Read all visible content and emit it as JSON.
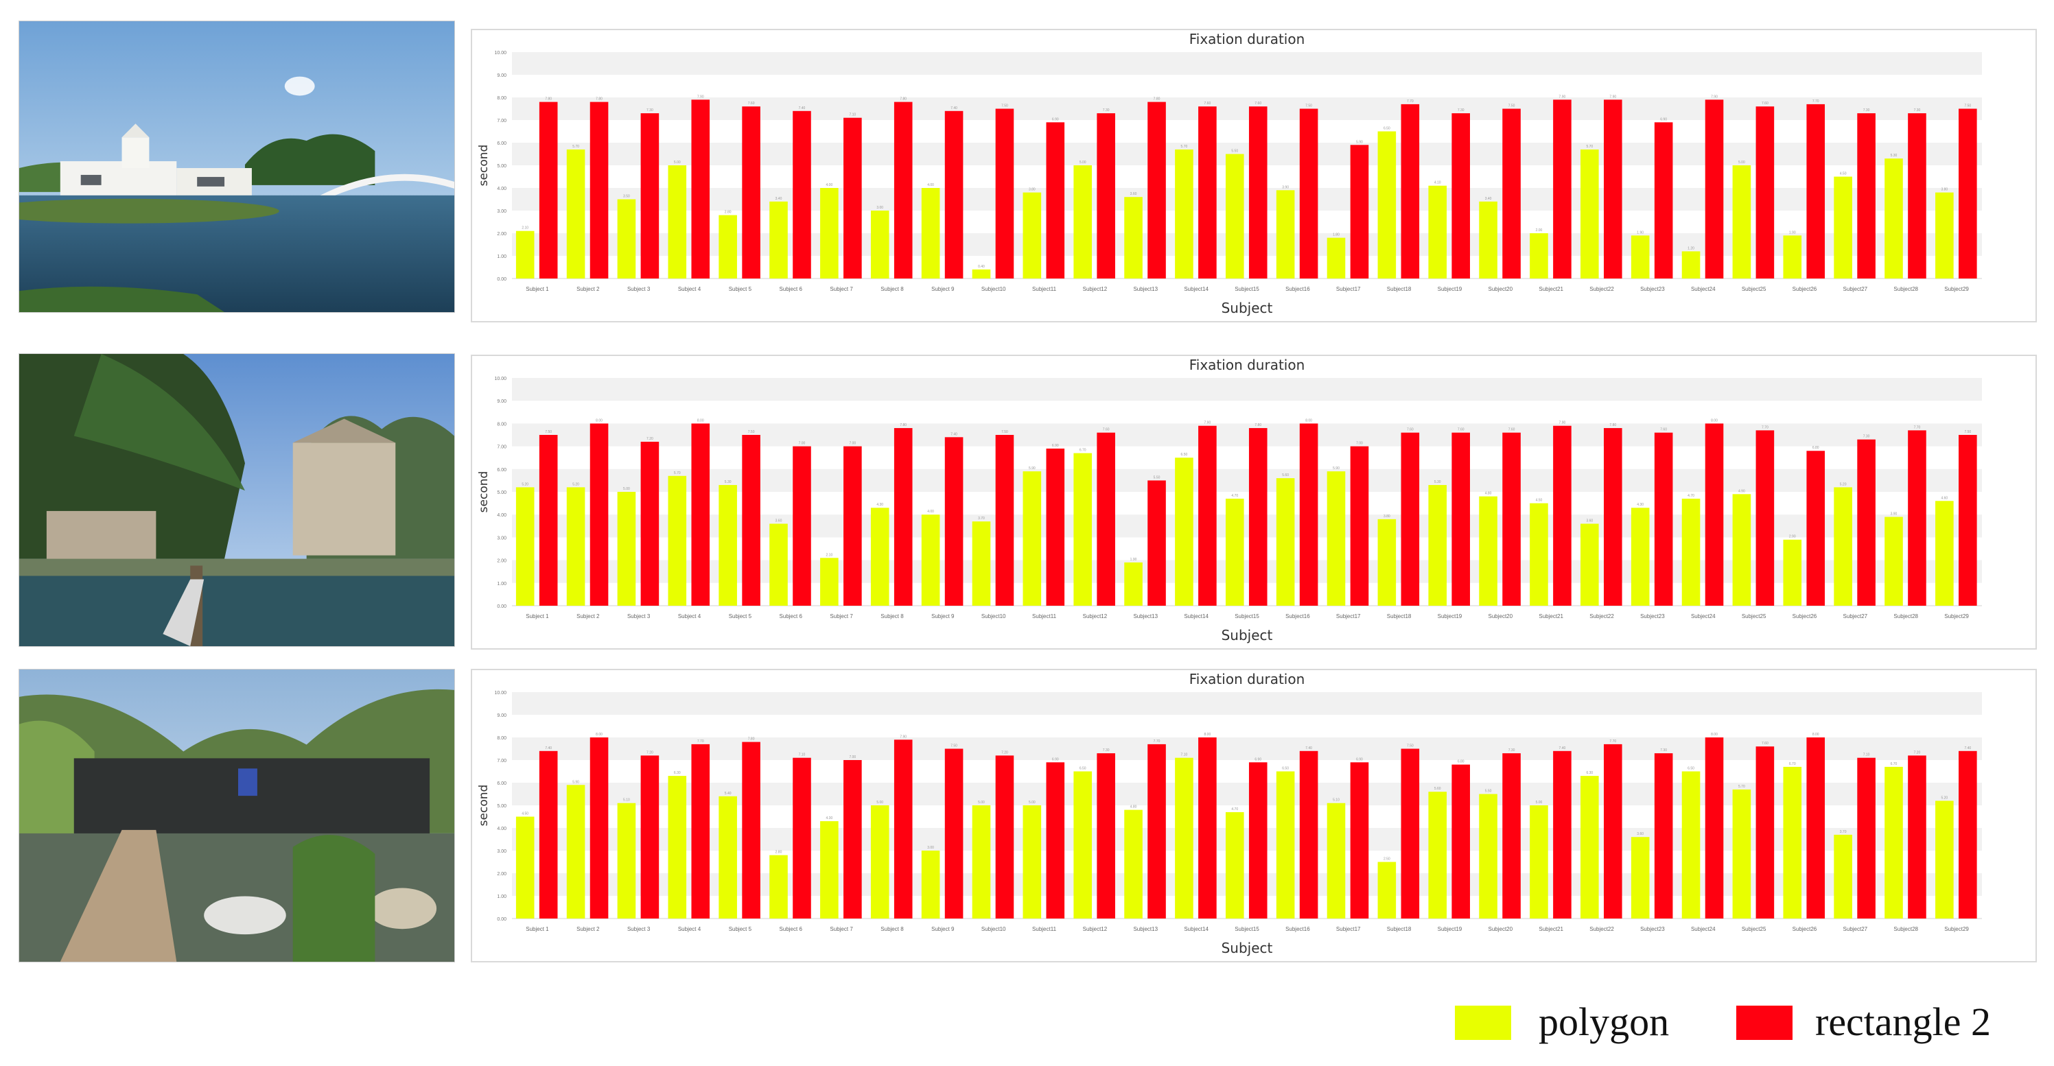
{
  "legend": {
    "polygon_label": "polygon",
    "rectangle_label": "rectangle 2",
    "polygon_color": "#e8ff00",
    "rectangle_color": "#ff0010"
  },
  "photos": [
    {
      "scene": "white-buildings-lake-bridge"
    },
    {
      "scene": "tree-concrete-buildings-pond"
    },
    {
      "scene": "dark-building-mountains-boardwalk"
    }
  ],
  "chart_data": [
    {
      "type": "bar",
      "title": "Fixation duration",
      "xlabel": "Subject",
      "ylabel": "second",
      "ylim": [
        0,
        10
      ],
      "yticks": [
        "0.00",
        "1.00",
        "2.00",
        "3.00",
        "4.00",
        "5.00",
        "6.00",
        "7.00",
        "8.00",
        "9.00",
        "10.00"
      ],
      "categories": [
        "Subject 1",
        "Subject 2",
        "Subject 3",
        "Subject 4",
        "Subject 5",
        "Subject 6",
        "Subject 7",
        "Subject 8",
        "Subject 9",
        "Subject10",
        "Subject11",
        "Subject12",
        "Subject13",
        "Subject14",
        "Subject15",
        "Subject16",
        "Subject17",
        "Subject18",
        "Subject19",
        "Subject20",
        "Subject21",
        "Subject22",
        "Subject23",
        "Subject24",
        "Subject25",
        "Subject26",
        "Subject27",
        "Subject28",
        "Subject29"
      ],
      "series": [
        {
          "name": "polygon",
          "values": [
            2.1,
            5.7,
            3.5,
            5.0,
            2.8,
            3.4,
            4.0,
            3.0,
            4.0,
            0.4,
            3.8,
            5.0,
            3.6,
            5.7,
            5.5,
            3.9,
            1.8,
            6.5,
            4.1,
            3.4,
            2.0,
            5.7,
            1.9,
            1.2,
            5.0,
            1.9,
            4.5,
            5.3,
            3.8
          ]
        },
        {
          "name": "rectangle 2",
          "values": [
            7.8,
            7.8,
            7.3,
            7.9,
            7.6,
            7.4,
            7.1,
            7.8,
            7.4,
            7.5,
            6.9,
            7.3,
            7.8,
            7.6,
            7.6,
            7.5,
            5.9,
            7.7,
            7.3,
            7.5,
            7.9,
            7.9,
            6.9,
            7.9,
            7.6,
            7.7,
            7.3,
            7.3,
            7.5
          ]
        }
      ]
    },
    {
      "type": "bar",
      "title": "Fixation duration",
      "xlabel": "Subject",
      "ylabel": "second",
      "ylim": [
        0,
        10
      ],
      "yticks": [
        "0.00",
        "1.00",
        "2.00",
        "3.00",
        "4.00",
        "5.00",
        "6.00",
        "7.00",
        "8.00",
        "9.00",
        "10.00"
      ],
      "categories": [
        "Subject 1",
        "Subject 2",
        "Subject 3",
        "Subject 4",
        "Subject 5",
        "Subject 6",
        "Subject 7",
        "Subject 8",
        "Subject 9",
        "Subject10",
        "Subject11",
        "Subject12",
        "Subject13",
        "Subject14",
        "Subject15",
        "Subject16",
        "Subject17",
        "Subject18",
        "Subject19",
        "Subject20",
        "Subject21",
        "Subject22",
        "Subject23",
        "Subject24",
        "Subject25",
        "Subject26",
        "Subject27",
        "Subject28",
        "Subject29"
      ],
      "series": [
        {
          "name": "polygon",
          "values": [
            5.2,
            5.2,
            5.0,
            5.7,
            5.3,
            3.6,
            2.1,
            4.3,
            4.0,
            3.7,
            5.9,
            6.7,
            1.9,
            6.5,
            4.7,
            5.6,
            5.9,
            3.8,
            5.3,
            4.8,
            4.5,
            3.6,
            4.3,
            4.7,
            4.9,
            2.9,
            5.2,
            3.9,
            4.6
          ]
        },
        {
          "name": "rectangle 2",
          "values": [
            7.5,
            8.0,
            7.2,
            8.0,
            7.5,
            7.0,
            7.0,
            7.8,
            7.4,
            7.5,
            6.9,
            7.6,
            5.5,
            7.9,
            7.8,
            8.0,
            7.0,
            7.6,
            7.6,
            7.6,
            7.9,
            7.8,
            7.6,
            8.0,
            7.7,
            6.8,
            7.3,
            7.7,
            7.5
          ]
        }
      ]
    },
    {
      "type": "bar",
      "title": "Fixation duration",
      "xlabel": "Subject",
      "ylabel": "second",
      "ylim": [
        0,
        10
      ],
      "yticks": [
        "0.00",
        "1.00",
        "2.00",
        "3.00",
        "4.00",
        "5.00",
        "6.00",
        "7.00",
        "8.00",
        "9.00",
        "10.00"
      ],
      "categories": [
        "Subject 1",
        "Subject 2",
        "Subject 3",
        "Subject 4",
        "Subject 5",
        "Subject 6",
        "Subject 7",
        "Subject 8",
        "Subject 9",
        "Subject10",
        "Subject11",
        "Subject12",
        "Subject13",
        "Subject14",
        "Subject15",
        "Subject16",
        "Subject17",
        "Subject18",
        "Subject19",
        "Subject20",
        "Subject21",
        "Subject22",
        "Subject23",
        "Subject24",
        "Subject25",
        "Subject26",
        "Subject27",
        "Subject28",
        "Subject29"
      ],
      "series": [
        {
          "name": "polygon",
          "values": [
            4.5,
            5.9,
            5.1,
            6.3,
            5.4,
            2.8,
            4.3,
            5.0,
            3.0,
            5.0,
            5.0,
            6.5,
            4.8,
            7.1,
            4.7,
            6.5,
            5.1,
            2.5,
            5.6,
            5.5,
            5.0,
            6.3,
            3.6,
            6.5,
            5.7,
            6.7,
            3.7,
            6.7,
            5.2
          ]
        },
        {
          "name": "rectangle 2",
          "values": [
            7.4,
            8.0,
            7.2,
            7.7,
            7.8,
            7.1,
            7.0,
            7.9,
            7.5,
            7.2,
            6.9,
            7.3,
            7.7,
            8.0,
            6.9,
            7.4,
            6.9,
            7.5,
            6.8,
            7.3,
            7.4,
            7.7,
            7.3,
            8.0,
            7.6,
            8.0,
            7.1,
            7.2,
            7.4
          ]
        }
      ]
    }
  ]
}
